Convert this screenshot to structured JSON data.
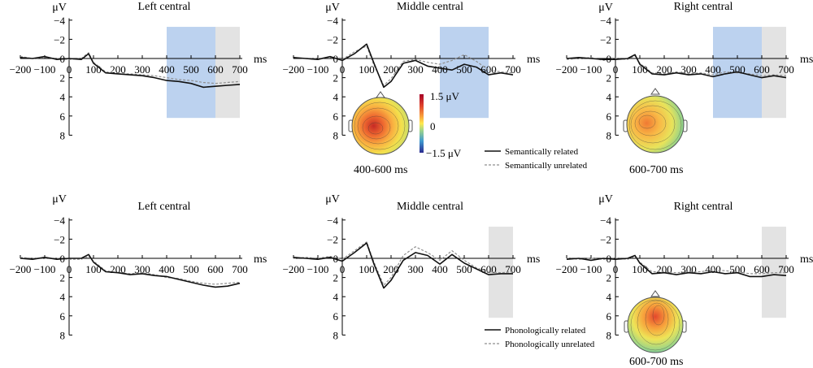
{
  "colors": {
    "blue_window": "#bcd2ef",
    "gray_window": "#e3e3e3",
    "related": "#111111",
    "unrelated": "#8f8f8f"
  },
  "axis": {
    "unit_y": "μV",
    "unit_x": "ms",
    "y_ticks": [
      "−4",
      "−2",
      "0",
      "2",
      "4",
      "6",
      "8"
    ],
    "x_ticks": [
      "−200",
      "−100",
      "0",
      "100",
      "200",
      "300",
      "400",
      "500",
      "600",
      "700"
    ]
  },
  "chart_data": [
    {
      "type": "line",
      "row": 1,
      "col": 1,
      "title": "Left central",
      "xlabel": "ms",
      "ylabel": "μV",
      "xlim": [
        -200,
        700
      ],
      "ylim": [
        -4,
        8
      ],
      "y_inverted": true,
      "shaded": [
        {
          "from": 400,
          "to": 600,
          "color": "blue"
        },
        {
          "from": 600,
          "to": 700,
          "color": "gray"
        }
      ],
      "x": [
        -200,
        -150,
        -100,
        -50,
        0,
        50,
        80,
        100,
        150,
        200,
        250,
        300,
        350,
        400,
        450,
        500,
        550,
        600,
        650,
        700
      ],
      "series": [
        {
          "name": "Semantically related",
          "values": [
            -0.1,
            0,
            -0.2,
            0.1,
            0,
            0.1,
            -0.5,
            0.5,
            1.5,
            1.6,
            1.7,
            1.8,
            2.0,
            2.3,
            2.4,
            2.6,
            3.0,
            2.9,
            2.8,
            2.7
          ]
        },
        {
          "name": "Semantically unrelated",
          "values": [
            -0.2,
            0,
            -0.1,
            0,
            0.1,
            0,
            -0.6,
            0.4,
            1.4,
            1.6,
            1.6,
            1.7,
            1.8,
            2.0,
            2.2,
            2.3,
            2.5,
            2.6,
            2.5,
            2.4
          ]
        }
      ]
    },
    {
      "type": "line",
      "row": 1,
      "col": 2,
      "title": "Middle central",
      "xlabel": "ms",
      "ylabel": "μV",
      "xlim": [
        -200,
        700
      ],
      "ylim": [
        -4,
        8
      ],
      "y_inverted": true,
      "shaded": [
        {
          "from": 400,
          "to": 600,
          "color": "blue"
        }
      ],
      "x": [
        -200,
        -150,
        -100,
        -50,
        0,
        50,
        100,
        130,
        170,
        200,
        250,
        300,
        350,
        400,
        450,
        500,
        550,
        600,
        650,
        700
      ],
      "series": [
        {
          "name": "Semantically related",
          "values": [
            -0.1,
            0,
            0.1,
            -0.2,
            0.2,
            -0.5,
            -1.5,
            0.5,
            3.0,
            2.4,
            0.5,
            0.2,
            0.8,
            1.0,
            1.2,
            0.6,
            0.9,
            1.7,
            1.5,
            1.7
          ]
        },
        {
          "name": "Semantically unrelated",
          "values": [
            -0.1,
            0,
            0,
            -0.1,
            0.1,
            -0.7,
            -1.3,
            0.7,
            2.8,
            2.1,
            0.3,
            0.1,
            0.4,
            0.6,
            0.2,
            -0.4,
            0.3,
            1.2,
            1.4,
            1.5
          ]
        }
      ]
    },
    {
      "type": "line",
      "row": 1,
      "col": 3,
      "title": "Right central",
      "xlabel": "ms",
      "ylabel": "μV",
      "xlim": [
        -200,
        700
      ],
      "ylim": [
        -4,
        8
      ],
      "y_inverted": true,
      "shaded": [
        {
          "from": 400,
          "to": 600,
          "color": "blue"
        },
        {
          "from": 600,
          "to": 700,
          "color": "gray"
        }
      ],
      "x": [
        -200,
        -150,
        -100,
        -50,
        0,
        50,
        80,
        100,
        150,
        200,
        250,
        300,
        350,
        400,
        450,
        500,
        550,
        600,
        650,
        700
      ],
      "series": [
        {
          "name": "Semantically related",
          "values": [
            0,
            -0.1,
            0,
            0.1,
            0.1,
            0,
            -0.4,
            0.6,
            1.6,
            1.7,
            1.5,
            1.7,
            1.6,
            1.9,
            1.6,
            1.4,
            1.7,
            2.0,
            1.8,
            2.0
          ]
        },
        {
          "name": "Semantically unrelated",
          "values": [
            0.1,
            0,
            -0.1,
            0.2,
            0,
            0.1,
            -0.3,
            0.5,
            1.5,
            1.6,
            1.4,
            1.6,
            1.5,
            1.7,
            1.4,
            1.5,
            1.6,
            1.8,
            1.7,
            1.8
          ]
        }
      ]
    },
    {
      "type": "line",
      "row": 2,
      "col": 1,
      "title": "Left central",
      "xlabel": "ms",
      "ylabel": "μV",
      "xlim": [
        -200,
        700
      ],
      "ylim": [
        -4,
        8
      ],
      "y_inverted": true,
      "shaded": [],
      "x": [
        -200,
        -150,
        -100,
        -50,
        0,
        50,
        80,
        100,
        150,
        200,
        250,
        300,
        350,
        400,
        450,
        500,
        550,
        600,
        650,
        700
      ],
      "series": [
        {
          "name": "Phonologically related",
          "values": [
            0,
            0.1,
            -0.1,
            0.1,
            0,
            0,
            -0.4,
            0.4,
            1.4,
            1.5,
            1.7,
            1.6,
            1.8,
            1.9,
            2.2,
            2.5,
            2.8,
            3.0,
            2.9,
            2.6
          ]
        },
        {
          "name": "Phonologically unrelated",
          "values": [
            -0.1,
            0,
            0,
            0,
            0.1,
            0.1,
            -0.2,
            0.3,
            1.3,
            1.5,
            1.6,
            1.5,
            1.7,
            2.0,
            2.1,
            2.4,
            2.6,
            2.7,
            2.6,
            2.5
          ]
        }
      ]
    },
    {
      "type": "line",
      "row": 2,
      "col": 2,
      "title": "Middle central",
      "xlabel": "ms",
      "ylabel": "μV",
      "xlim": [
        -200,
        700
      ],
      "ylim": [
        -4,
        8
      ],
      "y_inverted": true,
      "shaded": [
        {
          "from": 600,
          "to": 700,
          "color": "gray"
        }
      ],
      "x": [
        -200,
        -150,
        -100,
        -50,
        0,
        50,
        100,
        130,
        170,
        200,
        250,
        300,
        350,
        400,
        450,
        500,
        550,
        600,
        650,
        700
      ],
      "series": [
        {
          "name": "Phonologically related",
          "values": [
            -0.1,
            0,
            0.1,
            -0.1,
            0.3,
            -0.6,
            -1.6,
            0.6,
            3.1,
            2.3,
            0.2,
            -0.6,
            -0.3,
            0.6,
            -0.4,
            0.5,
            1.1,
            1.7,
            1.6,
            1.6
          ]
        },
        {
          "name": "Phonologically unrelated",
          "values": [
            0,
            -0.1,
            0,
            -0.2,
            0.1,
            -0.8,
            -1.7,
            0.4,
            2.8,
            2.0,
            -0.3,
            -1.2,
            -0.6,
            0.2,
            -0.8,
            0.2,
            1.0,
            1.4,
            1.5,
            1.4
          ]
        }
      ]
    },
    {
      "type": "line",
      "row": 2,
      "col": 3,
      "title": "Right central",
      "xlabel": "ms",
      "ylabel": "μV",
      "xlim": [
        -200,
        700
      ],
      "ylim": [
        -4,
        8
      ],
      "y_inverted": true,
      "shaded": [
        {
          "from": 600,
          "to": 700,
          "color": "gray"
        }
      ],
      "x": [
        -200,
        -150,
        -100,
        -50,
        0,
        50,
        80,
        100,
        150,
        200,
        250,
        300,
        350,
        400,
        450,
        500,
        550,
        600,
        650,
        700
      ],
      "series": [
        {
          "name": "Phonologically related",
          "values": [
            0.1,
            0,
            0.2,
            0,
            0.1,
            0,
            -0.3,
            0.5,
            1.6,
            1.5,
            1.7,
            1.5,
            1.6,
            1.4,
            1.6,
            1.5,
            1.9,
            1.9,
            1.7,
            1.8
          ]
        },
        {
          "name": "Phonologically unrelated",
          "values": [
            0,
            0.1,
            0,
            0.1,
            0,
            0.1,
            -0.2,
            0.4,
            1.4,
            1.4,
            1.5,
            1.4,
            1.4,
            1.2,
            1.3,
            1.4,
            1.6,
            1.6,
            1.5,
            1.5
          ]
        }
      ]
    }
  ],
  "topomaps": [
    {
      "label": "400-600 ms",
      "hotspot": "left-central"
    },
    {
      "label": "600-700 ms",
      "hotspot": "left-central"
    },
    {
      "label": "600-700 ms",
      "hotspot": "midline"
    }
  ],
  "colorbar": {
    "max": "1.5 μV",
    "mid": "0",
    "min": "−1.5 μV"
  },
  "legends": {
    "semantic": [
      "Semantically related",
      "Semantically unrelated"
    ],
    "phonological": [
      "Phonologically related",
      "Phonologically unrelated"
    ]
  }
}
